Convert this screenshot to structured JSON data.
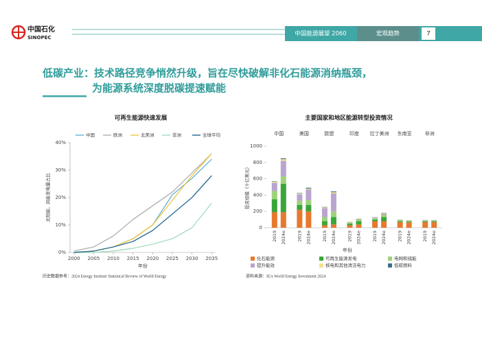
{
  "header": {
    "logo_cn": "中国石化",
    "logo_en": "SINOPEC",
    "report": "中国能源展望 2060",
    "section": "宏观趋势",
    "page": "7"
  },
  "title": {
    "line1": "低碳产业：技术路径竞争悄然升级，旨在尽快破解非化石能源消纳瓶颈，",
    "line2": "为能源系统深度脱碳提速赋能"
  },
  "chart_data": [
    {
      "type": "line",
      "title": "可再生能源快速发展",
      "ylabel": "太阳能、风能发电量占比",
      "xlabel": "年份",
      "x": [
        2000,
        2005,
        2010,
        2015,
        2020,
        2025,
        2030,
        2035
      ],
      "xlim": [
        1999,
        2036
      ],
      "xticks": [
        2000,
        2005,
        2010,
        2015,
        2020,
        2025,
        2030,
        2035
      ],
      "ylim": [
        0,
        40
      ],
      "yticks": [
        {
          "value": 0,
          "label": "0%"
        },
        {
          "value": 10,
          "label": "10%"
        },
        {
          "value": 20,
          "label": "20%"
        },
        {
          "value": 30,
          "label": "30%"
        },
        {
          "value": 40,
          "label": "40%"
        }
      ],
      "series": [
        {
          "name": "中国",
          "color": "#6fb3d9",
          "values": [
            0,
            0.5,
            2,
            5,
            10,
            21,
            27,
            34
          ]
        },
        {
          "name": "欧洲",
          "color": "#b3b3b3",
          "values": [
            0.5,
            2,
            6,
            12,
            17,
            22,
            29,
            36
          ]
        },
        {
          "name": "北美洲",
          "color": "#f0c84a",
          "values": [
            0,
            0.5,
            2,
            5,
            10,
            19,
            28,
            36
          ]
        },
        {
          "name": "非洲",
          "color": "#a8dcc0",
          "values": [
            0,
            0,
            0.5,
            1.5,
            3,
            5,
            9,
            18
          ]
        },
        {
          "name": "全球平均",
          "color": "#2e6e96",
          "values": [
            0,
            0.5,
            2,
            4,
            8,
            14,
            20,
            28
          ]
        }
      ],
      "source": "历史数据参考：2024 Energy Institute Statistical Review of World Energy"
    },
    {
      "type": "stacked_bar",
      "title": "主要国家和地区能源转型投资情况",
      "ylabel": "投资规模（十亿美元）",
      "xlabel": "年份",
      "groups": [
        "中国",
        "美国",
        "欧盟",
        "印度",
        "拉丁美洲",
        "东南亚",
        "非洲"
      ],
      "categories": [
        "2019",
        "2024e",
        "2019",
        "2024e",
        "2019",
        "2024e",
        "2019",
        "2024e",
        "2019",
        "2024e",
        "2019",
        "2024e",
        "2019",
        "2024e"
      ],
      "ylim": [
        0,
        1000
      ],
      "yticks": [
        0,
        200,
        400,
        600,
        800,
        1000
      ],
      "series": [
        {
          "name": "化石能源",
          "color": "#e8782e",
          "values": [
            190,
            190,
            220,
            200,
            30,
            40,
            30,
            40,
            80,
            80,
            70,
            65,
            70,
            70
          ]
        },
        {
          "name": "可再生能源发电",
          "color": "#3aa63a",
          "values": [
            160,
            350,
            60,
            80,
            50,
            90,
            20,
            40,
            20,
            50,
            10,
            10,
            10,
            10
          ]
        },
        {
          "name": "电网和储能",
          "color": "#9fd27a",
          "values": [
            100,
            90,
            50,
            60,
            50,
            70,
            15,
            20,
            15,
            30,
            15,
            12,
            10,
            10
          ]
        },
        {
          "name": "提升能效",
          "color": "#b9a5d0",
          "values": [
            100,
            190,
            80,
            130,
            110,
            220,
            5,
            10,
            10,
            15,
            5,
            5,
            5,
            5
          ]
        },
        {
          "name": "核电和其他清洁电力",
          "color": "#f3e28f",
          "values": [
            15,
            20,
            10,
            10,
            10,
            15,
            5,
            5,
            3,
            5,
            2,
            2,
            2,
            2
          ]
        },
        {
          "name": "低碳燃料",
          "color": "#3f6f8a",
          "values": [
            5,
            10,
            5,
            10,
            5,
            10,
            0,
            0,
            2,
            3,
            0,
            0,
            0,
            0
          ]
        }
      ],
      "source": "资料来源：IEA World Energy Investment 2024"
    }
  ]
}
